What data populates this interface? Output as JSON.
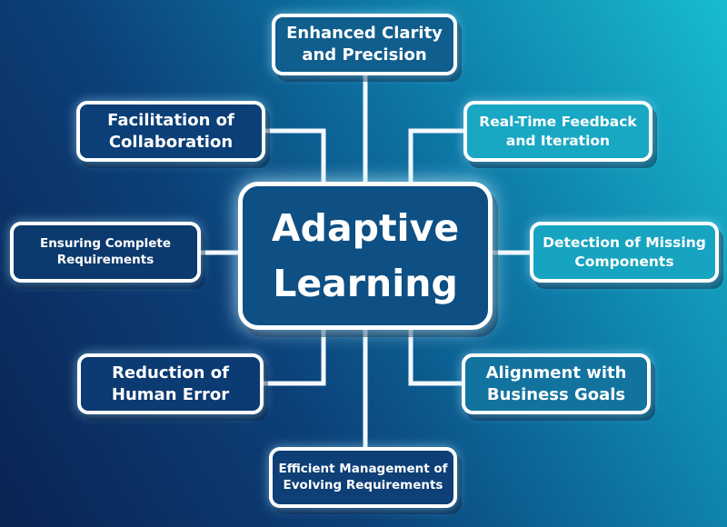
{
  "center": {
    "line1": "Adaptive",
    "line2": "Learning"
  },
  "nodes": {
    "top": {
      "line1": "Enhanced Clarity",
      "line2": "and Precision"
    },
    "top_left": {
      "line1": "Facilitation of",
      "line2": "Collaboration"
    },
    "top_right": {
      "line1": "Real-Time Feedback",
      "line2": "and Iteration"
    },
    "middle_left": {
      "line1": "Ensuring Complete",
      "line2": "Requirements"
    },
    "middle_right": {
      "line1": "Detection of Missing",
      "line2": "Components"
    },
    "bottom_left": {
      "line1": "Reduction of",
      "line2": "Human Error"
    },
    "bottom_right": {
      "line1": "Alignment with",
      "line2": "Business Goals"
    },
    "bottom": {
      "line1": "Efficient Management of",
      "line2": "Evolving Requirements"
    }
  },
  "colors": {
    "connector": "#f4f8ff",
    "center_fill": "#0e4f84",
    "border": "#ffffff"
  }
}
